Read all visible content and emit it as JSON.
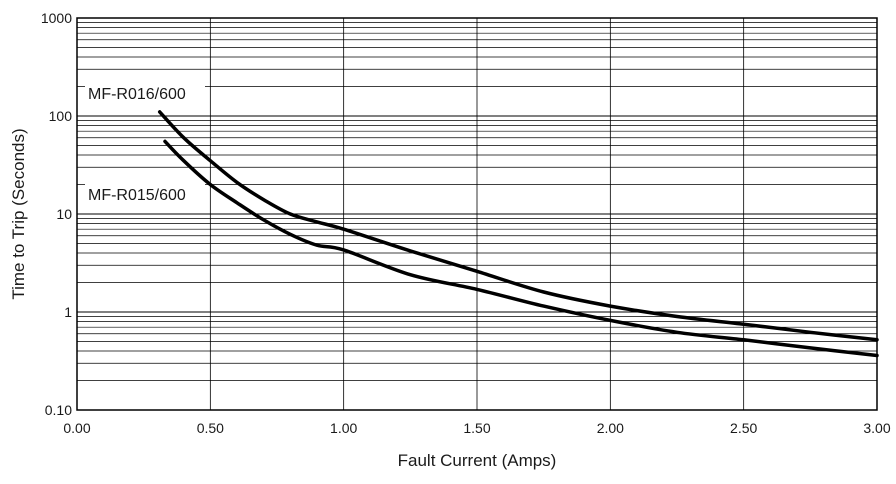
{
  "chart_data": {
    "type": "line",
    "xlabel": "Fault Current (Amps)",
    "ylabel": "Time to Trip (Seconds)",
    "xlim": [
      0.0,
      3.0
    ],
    "ylim": [
      0.1,
      1000
    ],
    "yscale": "log",
    "x_ticks": [
      "0.00",
      "0.50",
      "1.00",
      "1.50",
      "2.00",
      "2.50",
      "3.00"
    ],
    "y_ticks": [
      {
        "value": 0.1,
        "label": "0.10"
      },
      {
        "value": 1,
        "label": "1"
      },
      {
        "value": 10,
        "label": "10"
      },
      {
        "value": 100,
        "label": "100"
      },
      {
        "value": 1000,
        "label": "1000"
      }
    ],
    "grid": true,
    "series": [
      {
        "name": "MF-R016/600",
        "x": [
          0.31,
          0.4,
          0.5,
          0.6,
          0.7,
          0.8,
          0.9,
          1.0,
          1.25,
          1.5,
          1.75,
          2.0,
          2.25,
          2.5,
          2.75,
          3.0
        ],
        "y": [
          110,
          60,
          35,
          21,
          14,
          10,
          8.3,
          7.0,
          4.2,
          2.6,
          1.6,
          1.15,
          0.9,
          0.75,
          0.62,
          0.52
        ]
      },
      {
        "name": "MF-R015/600",
        "x": [
          0.33,
          0.4,
          0.5,
          0.6,
          0.7,
          0.8,
          0.9,
          1.0,
          1.25,
          1.5,
          1.75,
          2.0,
          2.25,
          2.5,
          2.75,
          3.0
        ],
        "y": [
          55,
          35,
          20,
          13,
          8.7,
          6.2,
          4.8,
          4.3,
          2.4,
          1.7,
          1.15,
          0.82,
          0.62,
          0.52,
          0.43,
          0.36
        ]
      }
    ],
    "annotations": [
      "MF-R016/600",
      "MF-R015/600"
    ]
  },
  "colors": {
    "line": "#000000",
    "grid": "#000000",
    "background": "#ffffff"
  }
}
